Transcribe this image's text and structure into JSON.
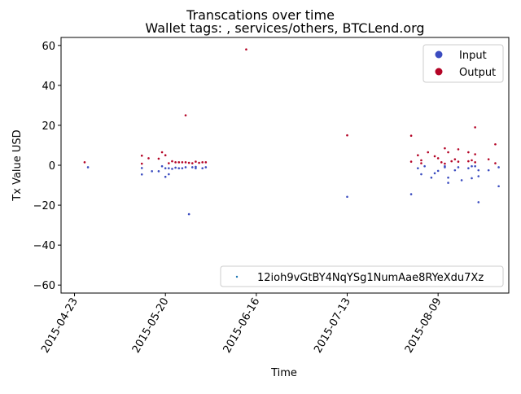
{
  "chart_data": {
    "type": "scatter",
    "title": "Transcations over time",
    "subtitle": "Wallet tags: , services/others, BTCLend.org",
    "xlabel": "Time",
    "ylabel": "Tx Value USD",
    "x_ticks": [
      "2015-04-23",
      "2015-05-20",
      "2015-06-16",
      "2015-07-13",
      "2015-08-09"
    ],
    "xlim": [
      "2015-04-19",
      "2015-08-30"
    ],
    "y_ticks": [
      -60,
      -40,
      -20,
      0,
      20,
      40,
      60
    ],
    "ylim": [
      -64,
      64
    ],
    "grid": false,
    "legend": {
      "placement": "top-right",
      "entries": [
        {
          "label": "Input",
          "color": "#3b4cc0"
        },
        {
          "label": "Output",
          "color": "#b40426"
        }
      ]
    },
    "legend2": {
      "placement": "bottom-right",
      "entries": [
        {
          "label": "12ioh9vGtBY4NqYSg1NumAae8RYeXdu7Xz",
          "color": "#1f77b4"
        }
      ]
    },
    "series": [
      {
        "name": "Input",
        "color": "#3b4cc0",
        "points": [
          [
            "2015-04-27",
            -1.0
          ],
          [
            "2015-05-13",
            -4.6
          ],
          [
            "2015-05-13",
            -1.4
          ],
          [
            "2015-05-16",
            -3.0
          ],
          [
            "2015-05-18",
            -3.0
          ],
          [
            "2015-05-19",
            -0.5
          ],
          [
            "2015-05-20",
            -5.8
          ],
          [
            "2015-05-20",
            -1.5
          ],
          [
            "2015-05-21",
            -4.5
          ],
          [
            "2015-05-21",
            -1.5
          ],
          [
            "2015-05-22",
            -1.8
          ],
          [
            "2015-05-23",
            -1.2
          ],
          [
            "2015-05-24",
            -1.5
          ],
          [
            "2015-05-25",
            -1.5
          ],
          [
            "2015-05-26",
            -1.0
          ],
          [
            "2015-05-27",
            -24.5
          ],
          [
            "2015-05-28",
            -1.0
          ],
          [
            "2015-05-29",
            -0.8
          ],
          [
            "2015-05-29",
            -1.5
          ],
          [
            "2015-05-31",
            -1.5
          ],
          [
            "2015-06-01",
            -1.0
          ],
          [
            "2015-07-13",
            -15.8
          ],
          [
            "2015-08-01",
            -14.5
          ],
          [
            "2015-08-03",
            -1.5
          ],
          [
            "2015-08-04",
            -4.5
          ],
          [
            "2015-08-05",
            -0.5
          ],
          [
            "2015-08-07",
            -6.2
          ],
          [
            "2015-08-08",
            -4.0
          ],
          [
            "2015-08-09",
            -2.8
          ],
          [
            "2015-08-11",
            -0.5
          ],
          [
            "2015-08-11",
            -1.0
          ],
          [
            "2015-08-12",
            -6.2
          ],
          [
            "2015-08-12",
            -8.8
          ],
          [
            "2015-08-14",
            -2.5
          ],
          [
            "2015-08-15",
            -1.0
          ],
          [
            "2015-08-16",
            -7.5
          ],
          [
            "2015-08-18",
            -1.5
          ],
          [
            "2015-08-19",
            -0.5
          ],
          [
            "2015-08-19",
            -6.5
          ],
          [
            "2015-08-20",
            -0.5
          ],
          [
            "2015-08-21",
            -5.5
          ],
          [
            "2015-08-21",
            -18.5
          ],
          [
            "2015-08-21",
            -2.5
          ],
          [
            "2015-08-24",
            -2.5
          ],
          [
            "2015-08-27",
            -10.5
          ],
          [
            "2015-08-27",
            -1.0
          ]
        ]
      },
      {
        "name": "Output",
        "color": "#b40426",
        "points": [
          [
            "2015-04-26",
            1.5
          ],
          [
            "2015-05-13",
            4.8
          ],
          [
            "2015-05-13",
            0.8
          ],
          [
            "2015-05-15",
            3.5
          ],
          [
            "2015-05-18",
            3.3
          ],
          [
            "2015-05-19",
            6.5
          ],
          [
            "2015-05-20",
            5.0
          ],
          [
            "2015-05-21",
            1.0
          ],
          [
            "2015-05-22",
            2.0
          ],
          [
            "2015-05-23",
            1.5
          ],
          [
            "2015-05-24",
            1.5
          ],
          [
            "2015-05-25",
            1.5
          ],
          [
            "2015-05-26",
            1.5
          ],
          [
            "2015-05-26",
            25.0
          ],
          [
            "2015-05-27",
            1.2
          ],
          [
            "2015-05-28",
            1.0
          ],
          [
            "2015-05-29",
            1.8
          ],
          [
            "2015-05-30",
            1.2
          ],
          [
            "2015-05-31",
            1.5
          ],
          [
            "2015-06-01",
            1.5
          ],
          [
            "2015-06-13",
            58.0
          ],
          [
            "2015-07-13",
            15.0
          ],
          [
            "2015-08-01",
            14.8
          ],
          [
            "2015-08-01",
            1.8
          ],
          [
            "2015-08-03",
            5.0
          ],
          [
            "2015-08-04",
            2.5
          ],
          [
            "2015-08-04",
            1.0
          ],
          [
            "2015-08-06",
            6.5
          ],
          [
            "2015-08-08",
            4.5
          ],
          [
            "2015-08-09",
            3.5
          ],
          [
            "2015-08-10",
            1.5
          ],
          [
            "2015-08-11",
            0.8
          ],
          [
            "2015-08-11",
            8.5
          ],
          [
            "2015-08-12",
            6.5
          ],
          [
            "2015-08-13",
            2.0
          ],
          [
            "2015-08-14",
            3.0
          ],
          [
            "2015-08-15",
            8.0
          ],
          [
            "2015-08-15",
            1.8
          ],
          [
            "2015-08-18",
            6.5
          ],
          [
            "2015-08-18",
            2.0
          ],
          [
            "2015-08-19",
            2.5
          ],
          [
            "2015-08-20",
            1.5
          ],
          [
            "2015-08-20",
            19.0
          ],
          [
            "2015-08-20",
            5.5
          ],
          [
            "2015-08-24",
            3.0
          ],
          [
            "2015-08-26",
            10.5
          ],
          [
            "2015-08-26",
            1.0
          ]
        ]
      }
    ]
  }
}
